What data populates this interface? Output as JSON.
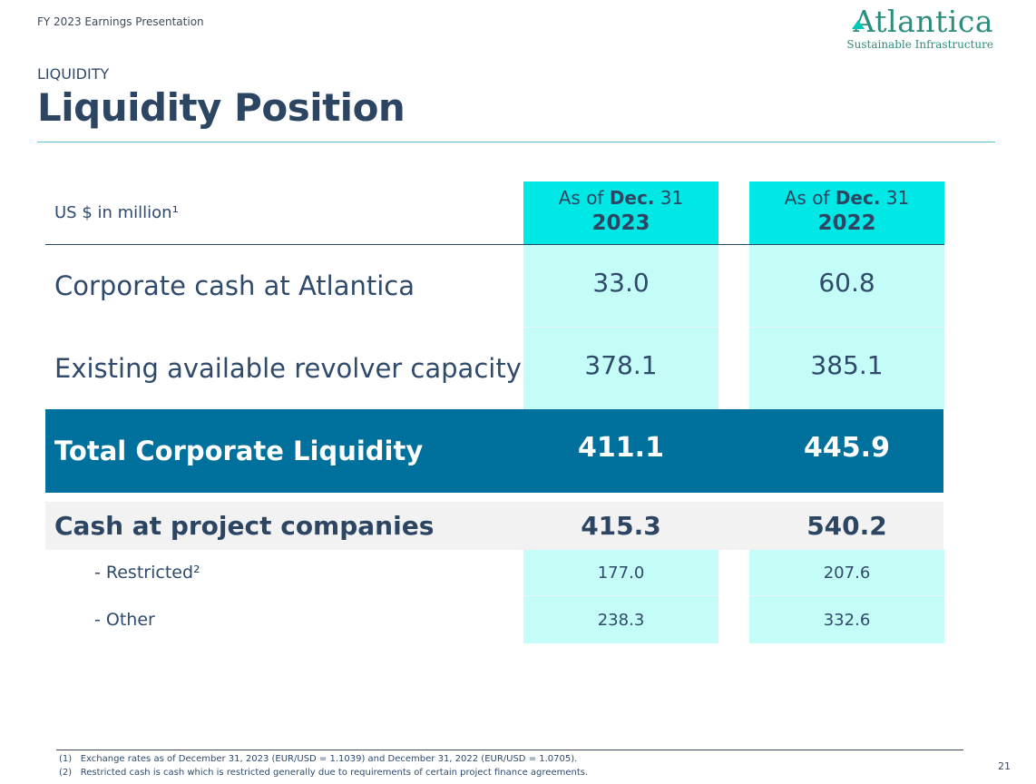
{
  "header": {
    "presentation_title": "FY 2023 Earnings Presentation",
    "logo_name": "Atlantica",
    "logo_tagline": "Sustainable Infrastructure"
  },
  "section_label": "LIQUIDITY",
  "page_title": "Liquidity Position",
  "table": {
    "units_label": "US $ in million¹",
    "columns": [
      {
        "prefix": "As of ",
        "bold": "Dec.",
        "suffix": " 31",
        "year": "2023"
      },
      {
        "prefix": "As of ",
        "bold": "Dec.",
        "suffix": " 31",
        "year": "2022"
      }
    ],
    "rows": [
      {
        "label": "Corporate cash at Atlantica",
        "v2023": "33.0",
        "v2022": "60.8"
      },
      {
        "label": "Existing available revolver capacity",
        "v2023": "378.1",
        "v2022": "385.1"
      }
    ],
    "total": {
      "label": "Total Corporate Liquidity",
      "v2023": "411.1",
      "v2022": "445.9"
    },
    "project_cash": {
      "label": "Cash at project companies",
      "v2023": "415.3",
      "v2022": "540.2"
    },
    "sub_rows": [
      {
        "label": "- Restricted²",
        "v2023": "177.0",
        "v2022": "207.6"
      },
      {
        "label": "- Other",
        "v2023": "238.3",
        "v2022": "332.6"
      }
    ]
  },
  "footnotes": [
    "(1)   Exchange rates as of December 31, 2023 (EUR/USD = 1.1039) and December 31, 2022 (EUR/USD = 1.0705).",
    "(2)   Restricted cash is cash which is restricted generally due to requirements of certain project finance agreements."
  ],
  "page_number": "21",
  "colors": {
    "accent_cyan": "#00e8e6",
    "light_cyan": "#c4fcf7",
    "total_blue": "#00709c",
    "navy": "#2c4563"
  }
}
